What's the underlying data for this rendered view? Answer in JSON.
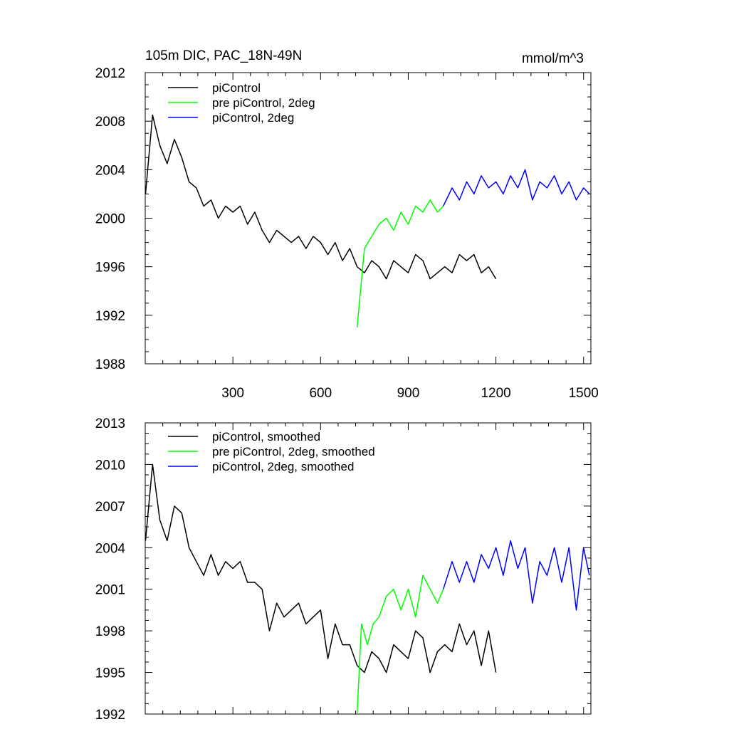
{
  "chart_data": [
    {
      "type": "line",
      "title": "105m DIC, PAC_18N-49N",
      "units_label": "mmol/m^3",
      "xlabel": "",
      "ylabel": "",
      "xlim": [
        0,
        1525
      ],
      "ylim": [
        1988,
        2012
      ],
      "xticks": [
        300,
        600,
        900,
        1200,
        1500
      ],
      "yticks": [
        1988,
        1992,
        1996,
        2000,
        2004,
        2008,
        2012
      ],
      "ytick_labels": [
        "1988",
        "1992",
        "1996",
        "2000",
        "2004",
        "2008",
        "2012"
      ],
      "xtick_labels": [
        "300",
        "600",
        "900",
        "1200",
        "1500"
      ],
      "legend_position": "top-left",
      "series": [
        {
          "name": "piControl",
          "color": "#000000",
          "x": [
            1,
            25,
            50,
            75,
            100,
            125,
            150,
            175,
            200,
            225,
            250,
            275,
            300,
            325,
            350,
            375,
            400,
            425,
            450,
            475,
            500,
            525,
            550,
            575,
            600,
            625,
            650,
            675,
            700,
            725,
            750,
            775,
            800,
            825,
            850,
            875,
            900,
            925,
            950,
            975,
            1000,
            1025,
            1050,
            1075,
            1100,
            1125,
            1150,
            1175,
            1200
          ],
          "y": [
            2002.0,
            2008.5,
            2006.0,
            2004.5,
            2006.5,
            2005.0,
            2003.0,
            2002.5,
            2001.0,
            2001.5,
            2000.0,
            2001.0,
            2000.5,
            2001.0,
            1999.5,
            2000.5,
            1999.0,
            1998.0,
            1999.0,
            1998.5,
            1998.0,
            1998.5,
            1997.5,
            1998.5,
            1998.0,
            1997.0,
            1998.0,
            1996.5,
            1997.5,
            1996.0,
            1995.5,
            1996.5,
            1996.0,
            1995.0,
            1996.5,
            1996.0,
            1995.5,
            1997.0,
            1996.5,
            1995.0,
            1995.5,
            1996.0,
            1995.5,
            1997.0,
            1996.5,
            1997.0,
            1995.5,
            1996.0,
            1995.0
          ]
        },
        {
          "name": "pre piControl, 2deg",
          "color": "#00ff00",
          "x": [
            725,
            750,
            775,
            800,
            825,
            850,
            875,
            900,
            925,
            950,
            975,
            1000,
            1020
          ],
          "y": [
            1991.0,
            1997.5,
            1998.5,
            1999.5,
            2000.0,
            1999.0,
            2000.5,
            1999.5,
            2001.0,
            2000.5,
            2001.5,
            2000.5,
            2001.0
          ]
        },
        {
          "name": "piControl, 2deg",
          "color": "#0000ff",
          "x": [
            1020,
            1050,
            1075,
            1100,
            1125,
            1150,
            1175,
            1200,
            1225,
            1250,
            1275,
            1300,
            1325,
            1350,
            1375,
            1400,
            1425,
            1450,
            1475,
            1500,
            1520
          ],
          "y": [
            2001.0,
            2002.5,
            2001.5,
            2003.0,
            2002.0,
            2003.5,
            2002.5,
            2003.0,
            2002.0,
            2003.5,
            2002.5,
            2004.0,
            2001.5,
            2003.0,
            2002.5,
            2003.5,
            2002.0,
            2003.0,
            2001.5,
            2002.5,
            2002.0
          ]
        }
      ]
    },
    {
      "type": "line",
      "title": "",
      "xlabel": "",
      "ylabel": "",
      "xlim": [
        0,
        1525
      ],
      "ylim": [
        1992,
        2013
      ],
      "xticks": [
        300,
        600,
        900,
        1200,
        1500
      ],
      "yticks": [
        1992,
        1995,
        1998,
        2001,
        2004,
        2007,
        2010,
        2013
      ],
      "ytick_labels": [
        "1992",
        "1995",
        "1998",
        "2001",
        "2004",
        "2007",
        "2010",
        "2013"
      ],
      "legend_position": "top-left",
      "series": [
        {
          "name": "piControl, smoothed",
          "color": "#000000",
          "x": [
            1,
            25,
            50,
            75,
            100,
            125,
            150,
            175,
            200,
            225,
            250,
            275,
            300,
            325,
            350,
            375,
            400,
            425,
            450,
            475,
            500,
            525,
            550,
            575,
            600,
            625,
            650,
            675,
            700,
            725,
            750,
            775,
            800,
            825,
            850,
            875,
            900,
            925,
            950,
            975,
            1000,
            1025,
            1050,
            1075,
            1100,
            1125,
            1150,
            1175,
            1200
          ],
          "y": [
            2004.5,
            2010.0,
            2006.0,
            2004.5,
            2007.0,
            2006.5,
            2004.0,
            2003.0,
            2002.0,
            2003.5,
            2002.0,
            2003.0,
            2002.5,
            2003.0,
            2001.5,
            2001.5,
            2001.0,
            1998.0,
            2000.0,
            1999.0,
            1999.5,
            2000.0,
            1998.5,
            1999.0,
            1999.5,
            1996.0,
            1998.5,
            1997.0,
            1997.0,
            1995.5,
            1995.0,
            1996.5,
            1996.0,
            1995.0,
            1997.0,
            1996.5,
            1996.0,
            1998.0,
            1997.5,
            1995.0,
            1996.5,
            1997.0,
            1996.5,
            1998.5,
            1997.0,
            1998.0,
            1995.5,
            1998.0,
            1995.0
          ]
        },
        {
          "name": "pre piControl, 2deg, smoothed",
          "color": "#00ff00",
          "x": [
            725,
            740,
            760,
            780,
            800,
            825,
            850,
            875,
            900,
            925,
            950,
            975,
            1000,
            1020
          ],
          "y": [
            1992.0,
            1998.5,
            1997.0,
            1998.5,
            1999.0,
            2000.5,
            2001.0,
            1999.5,
            2001.0,
            1999.0,
            2002.0,
            2001.0,
            2000.0,
            2001.0
          ]
        },
        {
          "name": "piControl, 2deg, smoothed",
          "color": "#0000ff",
          "x": [
            1020,
            1050,
            1075,
            1100,
            1125,
            1150,
            1175,
            1200,
            1225,
            1250,
            1275,
            1300,
            1325,
            1350,
            1375,
            1400,
            1425,
            1450,
            1475,
            1500,
            1520
          ],
          "y": [
            2001.0,
            2003.0,
            2001.5,
            2003.0,
            2001.5,
            2003.5,
            2002.5,
            2004.0,
            2002.0,
            2004.5,
            2002.5,
            2004.0,
            2000.0,
            2003.0,
            2002.0,
            2004.0,
            2001.5,
            2004.0,
            1999.5,
            2004.0,
            2002.0
          ]
        }
      ]
    }
  ]
}
